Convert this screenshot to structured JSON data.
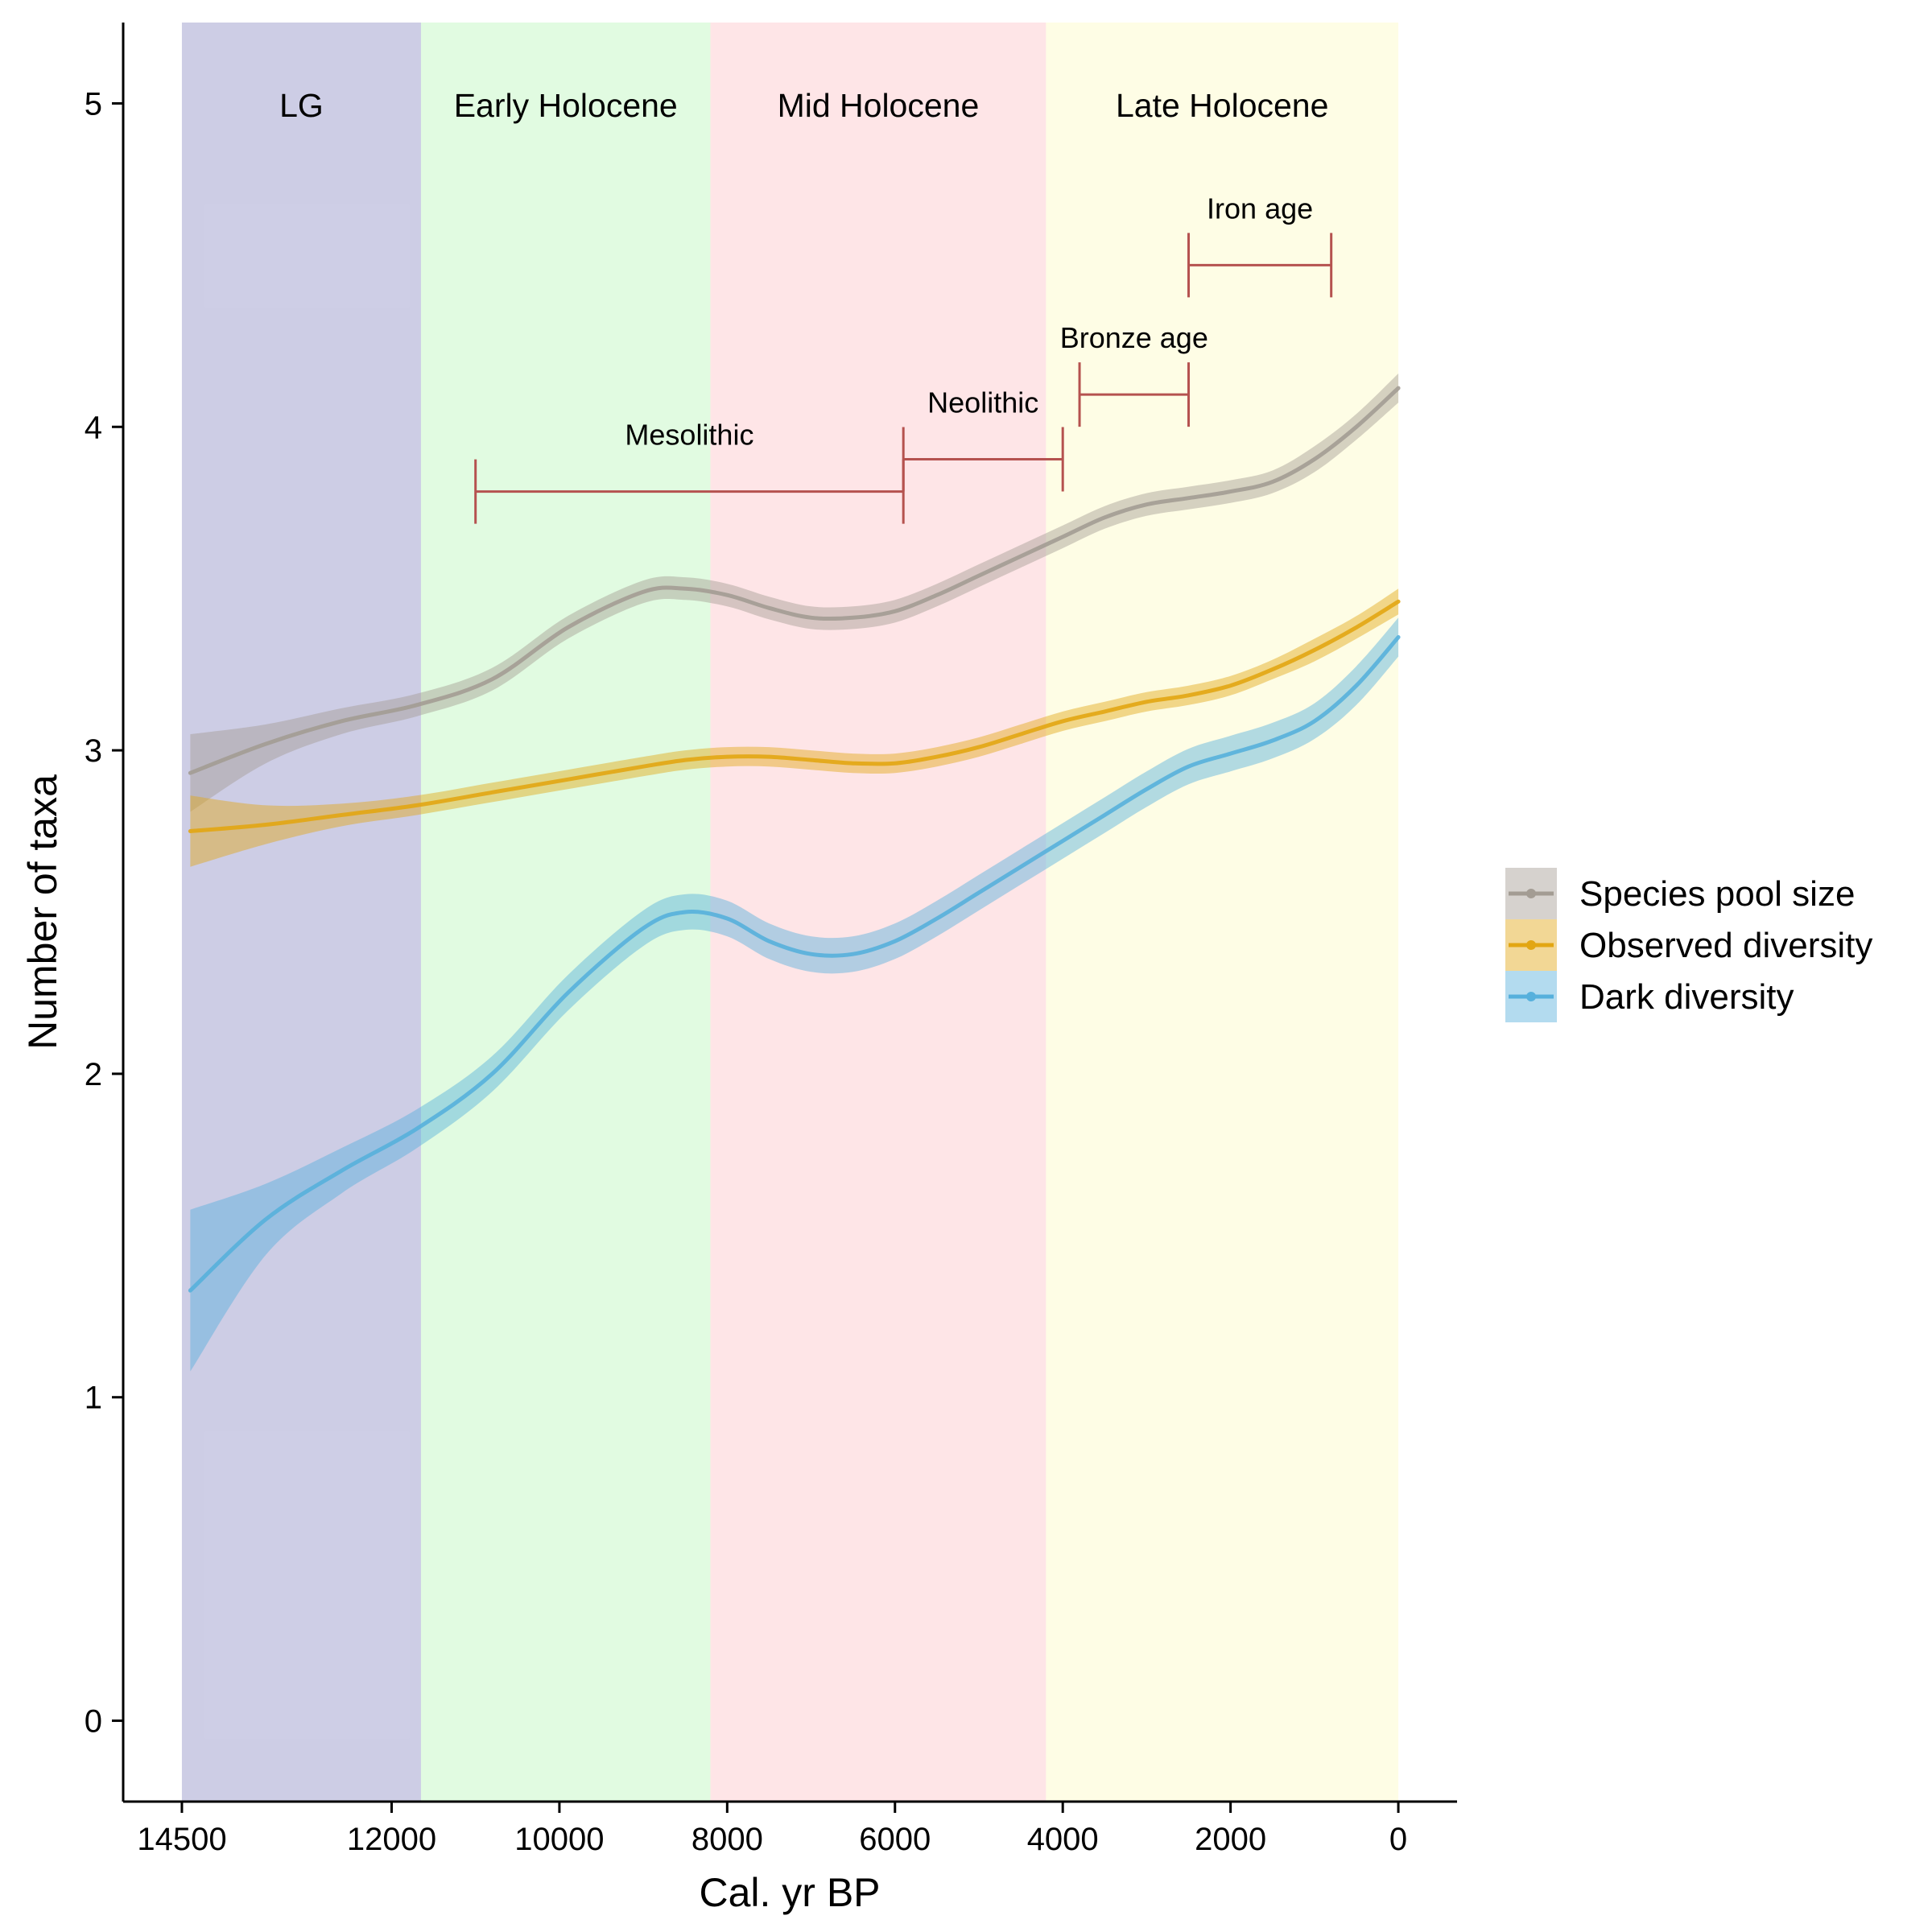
{
  "chart_data": {
    "type": "line",
    "xlabel": "Cal. yr BP",
    "ylabel": "Number of taxa",
    "xlim": [
      15200,
      -700
    ],
    "ylim": [
      -0.25,
      5.25
    ],
    "x_ticks": [
      14500,
      12000,
      10000,
      8000,
      6000,
      4000,
      2000,
      0
    ],
    "x_tick_labels": [
      "14500",
      "12000",
      "10000",
      "8000",
      "6000",
      "4000",
      "2000",
      "0"
    ],
    "y_ticks": [
      0,
      1,
      2,
      3,
      4,
      5
    ],
    "y_tick_labels": [
      "0",
      "1",
      "2",
      "3",
      "4",
      "5"
    ],
    "grid": false,
    "legend_position": "right",
    "periods": [
      {
        "label": "LG",
        "start": 14500,
        "end": 11650,
        "color": "#9c9ccc"
      },
      {
        "label": "Early Holocene",
        "start": 11650,
        "end": 8200,
        "color": "#c8f8c8"
      },
      {
        "label": "Mid Holocene",
        "start": 8200,
        "end": 4200,
        "color": "#fed0d4"
      },
      {
        "label": "Late Holocene",
        "start": 4200,
        "end": 0,
        "color": "#fefcd0"
      }
    ],
    "cultural_periods": [
      {
        "label": "Mesolithic",
        "start": 11000,
        "end": 5900,
        "y": 3.8
      },
      {
        "label": "Neolithic",
        "start": 5900,
        "end": 4000,
        "y": 3.9
      },
      {
        "label": "Bronze age",
        "start": 3800,
        "end": 2500,
        "y": 4.1
      },
      {
        "label": "Iron age",
        "start": 2500,
        "end": 800,
        "y": 4.5
      }
    ],
    "series": [
      {
        "name": "Species pool size",
        "color": "#a39c93",
        "x": [
          14400,
          13500,
          12600,
          11700,
          10800,
          9900,
          9000,
          8500,
          8000,
          7500,
          7000,
          6500,
          6000,
          5500,
          5000,
          4500,
          4000,
          3500,
          3000,
          2500,
          2000,
          1500,
          1000,
          500,
          0
        ],
        "y": [
          2.93,
          3.02,
          3.09,
          3.14,
          3.22,
          3.38,
          3.49,
          3.5,
          3.48,
          3.44,
          3.41,
          3.41,
          3.43,
          3.48,
          3.54,
          3.6,
          3.66,
          3.72,
          3.76,
          3.78,
          3.8,
          3.83,
          3.9,
          4.0,
          4.12
        ],
        "ci": [
          0.12,
          0.06,
          0.04,
          0.035,
          0.035,
          0.035,
          0.035,
          0.035,
          0.035,
          0.035,
          0.035,
          0.035,
          0.035,
          0.035,
          0.035,
          0.035,
          0.035,
          0.035,
          0.035,
          0.035,
          0.035,
          0.035,
          0.04,
          0.04,
          0.045
        ]
      },
      {
        "name": "Observed diversity",
        "color": "#e2a613",
        "x": [
          14400,
          13500,
          12600,
          11700,
          10800,
          9900,
          9000,
          8500,
          8000,
          7500,
          7000,
          6500,
          6000,
          5500,
          5000,
          4500,
          4000,
          3500,
          3000,
          2500,
          2000,
          1500,
          1000,
          500,
          0
        ],
        "y": [
          2.75,
          2.77,
          2.8,
          2.83,
          2.87,
          2.91,
          2.95,
          2.97,
          2.98,
          2.98,
          2.97,
          2.96,
          2.96,
          2.98,
          3.01,
          3.05,
          3.09,
          3.12,
          3.15,
          3.17,
          3.2,
          3.25,
          3.31,
          3.38,
          3.46
        ],
        "ci": [
          0.11,
          0.06,
          0.035,
          0.03,
          0.03,
          0.03,
          0.03,
          0.03,
          0.03,
          0.03,
          0.03,
          0.03,
          0.03,
          0.03,
          0.03,
          0.03,
          0.03,
          0.03,
          0.03,
          0.03,
          0.03,
          0.03,
          0.035,
          0.035,
          0.04
        ]
      },
      {
        "name": "Dark diversity",
        "color": "#56b0dc",
        "x": [
          14400,
          13500,
          12600,
          11700,
          10800,
          9900,
          9000,
          8500,
          8000,
          7500,
          7000,
          6500,
          6000,
          5500,
          5000,
          4500,
          4000,
          3500,
          3000,
          2500,
          2000,
          1500,
          1000,
          500,
          0
        ],
        "y": [
          1.33,
          1.55,
          1.7,
          1.83,
          2.0,
          2.25,
          2.45,
          2.5,
          2.48,
          2.41,
          2.37,
          2.37,
          2.41,
          2.48,
          2.56,
          2.64,
          2.72,
          2.8,
          2.88,
          2.95,
          2.99,
          3.03,
          3.09,
          3.2,
          3.35
        ],
        "ci": [
          0.25,
          0.11,
          0.07,
          0.06,
          0.055,
          0.055,
          0.055,
          0.055,
          0.055,
          0.055,
          0.055,
          0.055,
          0.055,
          0.055,
          0.055,
          0.055,
          0.055,
          0.055,
          0.055,
          0.055,
          0.055,
          0.055,
          0.055,
          0.06,
          0.06
        ]
      }
    ]
  }
}
